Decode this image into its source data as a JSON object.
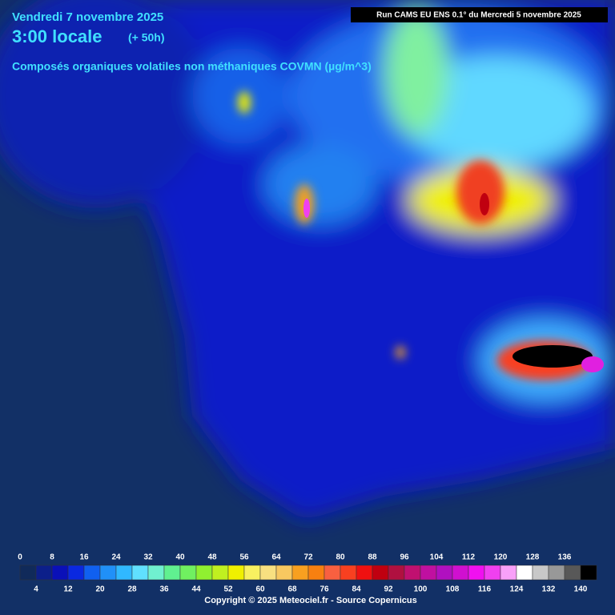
{
  "header": {
    "date": "Vendredi 7 novembre 2025",
    "time": "3:00 locale",
    "lead": "(+ 50h)",
    "run": "Run CAMS EU ENS 0.1° du Mercredi 5 novembre 2025",
    "variable": "Composés organiques volatiles non méthaniques COVMN (µg/m^3)"
  },
  "legend": {
    "top_labels": [
      0,
      8,
      16,
      24,
      32,
      40,
      48,
      56,
      64,
      72,
      80,
      88,
      96,
      104,
      112,
      120,
      128,
      136
    ],
    "bottom_labels": [
      4,
      12,
      20,
      28,
      36,
      44,
      52,
      60,
      68,
      76,
      84,
      92,
      100,
      108,
      116,
      124,
      132,
      140
    ],
    "colors": [
      "#102a5a",
      "#0c1f8a",
      "#0a10b8",
      "#0a28e0",
      "#1060f0",
      "#2090f8",
      "#30b8ff",
      "#60e0ff",
      "#70f0d0",
      "#60f090",
      "#70f060",
      "#90f030",
      "#c0f020",
      "#f0f000",
      "#f8f060",
      "#f8e080",
      "#f8c860",
      "#f8a020",
      "#f88010",
      "#f86040",
      "#f84020",
      "#f01010",
      "#c00010",
      "#b01040",
      "#c01070",
      "#c010a0",
      "#b010c0",
      "#d010d0",
      "#f010f0",
      "#f040f0",
      "#f8a0f8",
      "#ffffff",
      "#c8c8c8",
      "#989898",
      "#585858",
      "#000000"
    ]
  },
  "footer": "Copyright © 2025 Meteociel.fr - Source Copernicus"
}
